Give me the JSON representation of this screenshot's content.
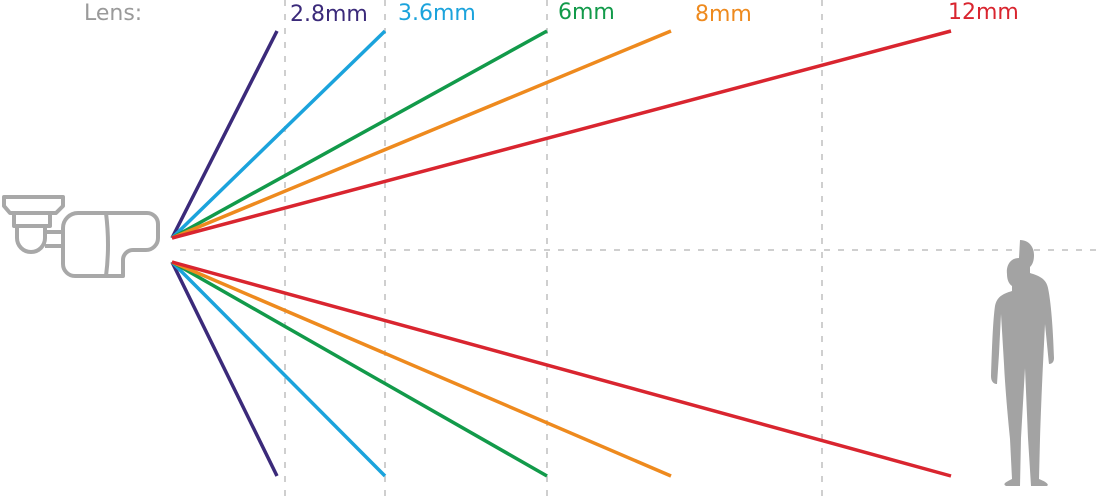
{
  "title_label": "Lens:",
  "lenses": [
    {
      "label": "2.8mm",
      "color": "#3b2a7a"
    },
    {
      "label": "3.6mm",
      "color": "#1ba3dc"
    },
    {
      "label": "6mm",
      "color": "#129a4a"
    },
    {
      "label": "8mm",
      "color": "#ee8a1e"
    },
    {
      "label": "12mm",
      "color": "#d9252f"
    }
  ],
  "icons": [
    "bullet-camera-icon",
    "person-silhouette-icon"
  ],
  "grid_color": "#cfcfcf",
  "label_color": "#9a9a9a"
}
